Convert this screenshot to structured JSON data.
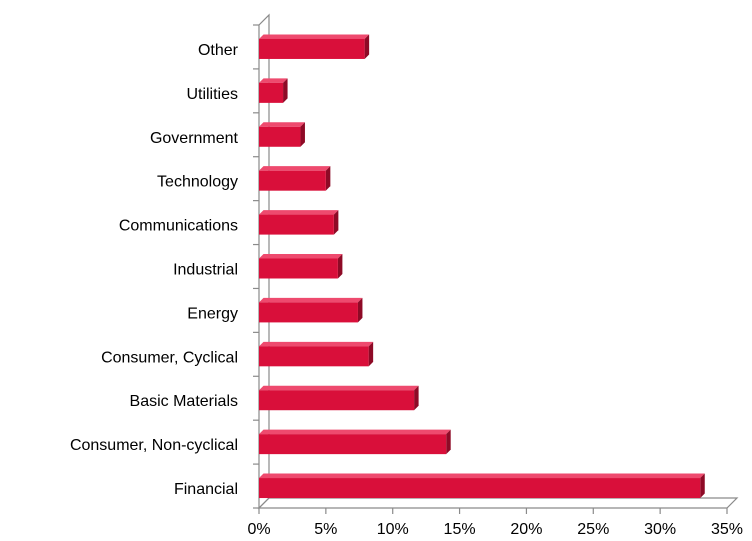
{
  "chart_data": {
    "type": "bar",
    "orientation": "horizontal",
    "style": "3d",
    "categories": [
      "Financial",
      "Consumer, Non-cyclical",
      "Basic Materials",
      "Consumer, Cyclical",
      "Energy",
      "Industrial",
      "Communications",
      "Technology",
      "Government",
      "Utilities",
      "Other"
    ],
    "values": [
      33.0,
      14.0,
      11.6,
      8.2,
      7.4,
      5.9,
      5.6,
      5.0,
      3.1,
      1.8,
      7.9
    ],
    "xlim": [
      0,
      35
    ],
    "xticks": [
      "0%",
      "5%",
      "10%",
      "15%",
      "20%",
      "25%",
      "30%",
      "35%"
    ],
    "title": "",
    "xlabel": "",
    "ylabel": "",
    "grid": false,
    "legend": "none",
    "colors": {
      "bar_front": "#d90f3a",
      "bar_top": "#ee4a6e",
      "bar_side": "#8e0a26",
      "axis": "#8a8a8a"
    }
  }
}
